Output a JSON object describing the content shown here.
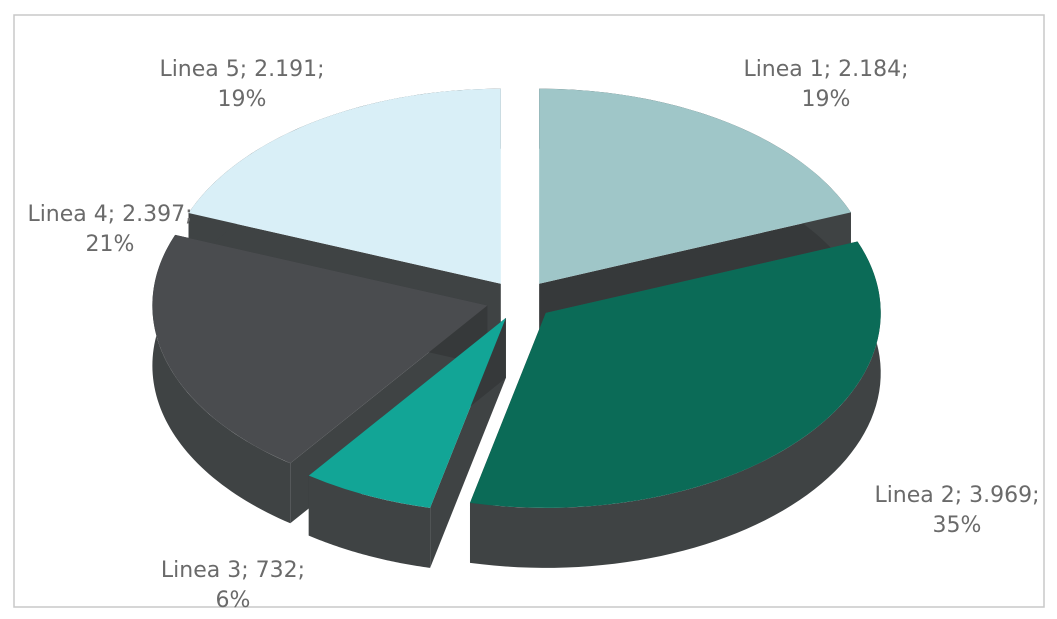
{
  "chart_data": {
    "type": "pie",
    "style": "3d-exploded",
    "title": "",
    "slices": [
      {
        "label": "Linea 1",
        "value": 2184,
        "value_text": "2.184",
        "percent": 19,
        "percent_text": "19%",
        "color": "#9fc6c8"
      },
      {
        "label": "Linea 2",
        "value": 3969,
        "value_text": "3.969",
        "percent": 35,
        "percent_text": "35%",
        "color": "#0b6b57"
      },
      {
        "label": "Linea 3",
        "value": 732,
        "value_text": "732",
        "percent": 6,
        "percent_text": "6%",
        "color": "#12a596"
      },
      {
        "label": "Linea 4",
        "value": 2397,
        "value_text": "2.397",
        "percent": 21,
        "percent_text": "21%",
        "color": "#4a4c4f"
      },
      {
        "label": "Linea 5",
        "value": 2191,
        "value_text": "2.191",
        "percent": 19,
        "percent_text": "19%",
        "color": "#d9eff7"
      }
    ],
    "side_color": "#3f4344",
    "text_color": "#6a6a6a",
    "border_color": "#c8c8c8"
  }
}
